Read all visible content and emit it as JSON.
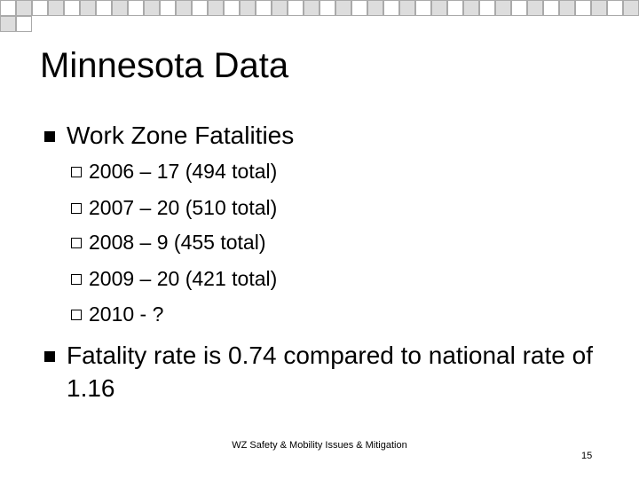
{
  "title": "Minnesota Data",
  "bullets": [
    {
      "text": "Work Zone Fatalities",
      "sub": [
        "2006 – 17 (494 total)",
        "2007 – 20 (510 total)",
        "2008 – 9 (455 total)",
        "2009 – 20 (421 total)",
        "2010 - ?"
      ]
    },
    {
      "text": "Fatality rate is 0.74 compared to national rate of 1.16"
    }
  ],
  "footer": {
    "text": "WZ Safety & Mobility Issues & Mitigation",
    "page": "15"
  }
}
